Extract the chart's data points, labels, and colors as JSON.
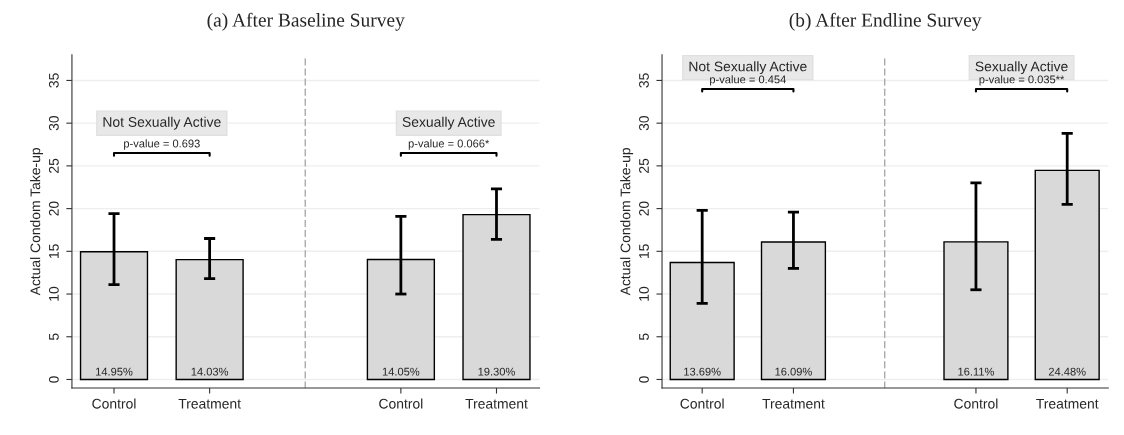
{
  "chart_data": [
    {
      "type": "bar",
      "title": "(a) After Baseline Survey",
      "ylabel": "Actual Condom Take-up",
      "categories": [
        "Control",
        "Treatment",
        null,
        "Control",
        "Treatment"
      ],
      "values": [
        14.95,
        14.03,
        null,
        14.05,
        19.3
      ],
      "color": "#d9d9d9",
      "errors": [
        [
          11.1,
          19.4
        ],
        [
          11.8,
          16.5
        ],
        null,
        [
          10.0,
          19.1
        ],
        [
          16.4,
          22.3
        ]
      ],
      "value_labels": [
        "14.95%",
        "14.03%",
        null,
        "14.05%",
        "19.30%"
      ],
      "ylim": [
        -1,
        38
      ],
      "yticks": [
        0,
        5,
        10,
        15,
        20,
        25,
        30,
        35
      ],
      "grid": "y",
      "annotations": [
        "Not Sexually Active",
        "p-value = 0.693",
        "Sexually Active",
        "p-value = 0.066*"
      ]
    },
    {
      "type": "bar",
      "title": "(b) After Endline Survey",
      "ylabel": "Actual Condom Take-up",
      "categories": [
        "Control",
        "Treatment",
        null,
        "Control",
        "Treatment"
      ],
      "values": [
        13.69,
        16.09,
        null,
        16.11,
        24.48
      ],
      "color": "#d9d9d9",
      "errors": [
        [
          8.9,
          19.8
        ],
        [
          13.0,
          19.6
        ],
        null,
        [
          10.5,
          23.0
        ],
        [
          20.5,
          28.8
        ]
      ],
      "value_labels": [
        "13.69%",
        "16.09%",
        null,
        "16.11%",
        "24.48%"
      ],
      "ylim": [
        -1,
        38
      ],
      "yticks": [
        0,
        5,
        10,
        15,
        20,
        25,
        30,
        35
      ],
      "grid": "y",
      "annotations": [
        "Not Sexually Active",
        "p-value = 0.454",
        "Sexually Active",
        "p-value = 0.035**"
      ]
    }
  ]
}
